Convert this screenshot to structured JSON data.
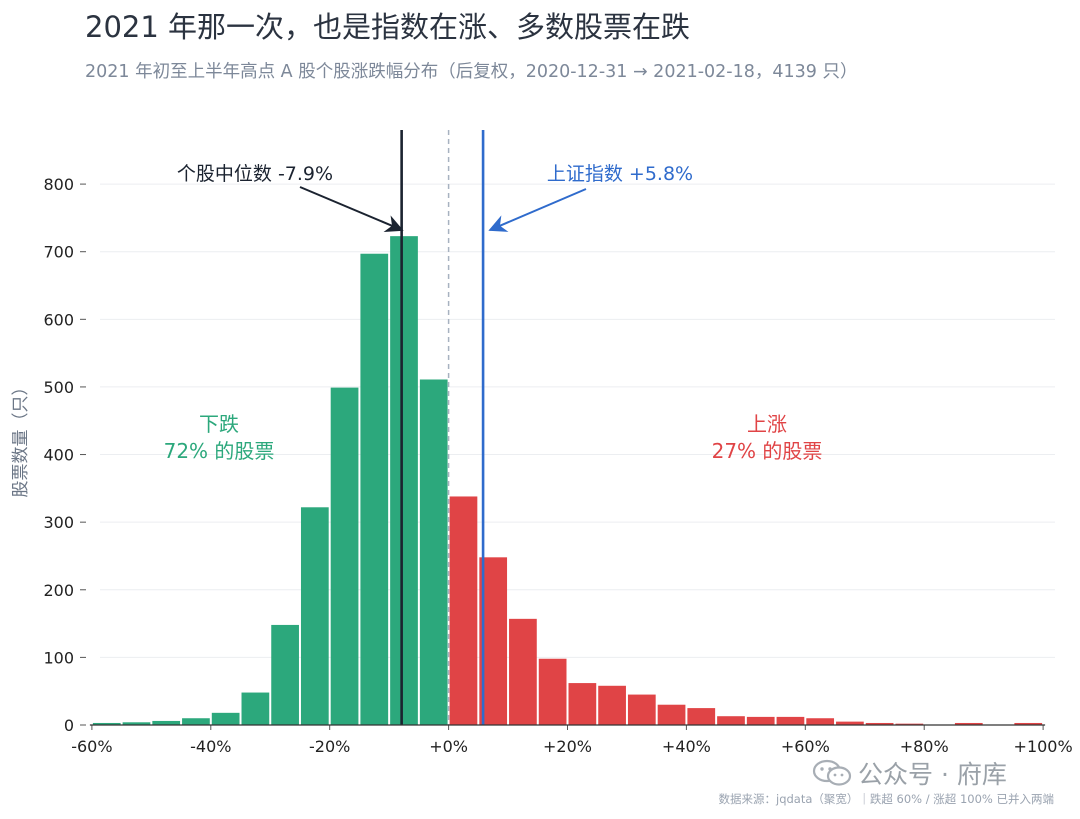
{
  "title": "2021 年那一次，也是指数在涨、多数股票在跌",
  "subtitle": "2021 年初至上半年高点 A 股个股涨跌幅分布（后复权，2020-12-31 → 2021-02-18，4139 只）",
  "source": "数据来源：jqdata（聚宽）｜跌超 60% / 涨超 100% 已并入两端",
  "watermark": "公众号 · 府库",
  "colors": {
    "down": "#2ca87c",
    "up": "#e04446",
    "median": "#1b2330",
    "index": "#2f6bcc",
    "zero": "#a7b2c0"
  },
  "chart_data": {
    "type": "bar",
    "ylabel": "股票数量（只）",
    "xlabel": "",
    "xlim": [
      -62,
      102
    ],
    "ylim": [
      0,
      880
    ],
    "x_ticks": [
      -60,
      -40,
      -20,
      0,
      20,
      40,
      60,
      80,
      100
    ],
    "x_tick_labels": [
      "-60%",
      "-40%",
      "-20%",
      "+0%",
      "+20%",
      "+40%",
      "+60%",
      "+80%",
      "+100%"
    ],
    "y_ticks": [
      0,
      100,
      200,
      300,
      400,
      500,
      600,
      700,
      800
    ],
    "y_tick_labels": [
      "0",
      "100",
      "200",
      "300",
      "400",
      "500",
      "600",
      "700",
      "800"
    ],
    "grid": "horizontal",
    "bin_width": 5,
    "bins_start": [
      -60,
      -55,
      -50,
      -45,
      -40,
      -35,
      -30,
      -25,
      -20,
      -15,
      -10,
      -5,
      0,
      5,
      10,
      15,
      20,
      25,
      30,
      35,
      40,
      45,
      50,
      55,
      60,
      65,
      70,
      75,
      80,
      85,
      90,
      95
    ],
    "counts": [
      3,
      4,
      6,
      10,
      18,
      48,
      148,
      322,
      499,
      697,
      723,
      511,
      338,
      248,
      157,
      98,
      62,
      58,
      45,
      30,
      25,
      13,
      12,
      12,
      10,
      5,
      3,
      2,
      0,
      3,
      0,
      3
    ],
    "lines": [
      {
        "name": "median",
        "x": -7.9,
        "label": "个股中位数 -7.9%"
      },
      {
        "name": "index",
        "x": 5.8,
        "label": "上证指数 +5.8%"
      },
      {
        "name": "zero",
        "x": 0
      }
    ],
    "regions": {
      "down": {
        "label": "下跌",
        "pct": "72% 的股票"
      },
      "up": {
        "label": "上涨",
        "pct": "27% 的股票"
      }
    }
  }
}
